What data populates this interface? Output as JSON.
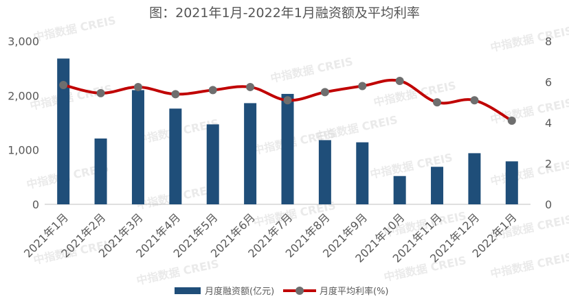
{
  "chart_data": {
    "type": "bar",
    "title": "图：2021年1月-2022年1月融资额及平均利率",
    "categories": [
      "2021年1月",
      "2021年2月",
      "2021年3月",
      "2021年4月",
      "2021年5月",
      "2021年6月",
      "2021年7月",
      "2021年8月",
      "2021年9月",
      "2021年10月",
      "2021年11月",
      "2021年12月",
      "2022年1月"
    ],
    "series": [
      {
        "name": "月度融资额(亿元)",
        "type": "bar",
        "axis": "left",
        "color": "#1f4e79",
        "values": [
          2680,
          1210,
          2100,
          1760,
          1470,
          1860,
          2030,
          1180,
          1140,
          520,
          690,
          940,
          790
        ]
      },
      {
        "name": "月度平均利率(%)",
        "type": "line",
        "axis": "right",
        "color": "#c00000",
        "marker_color": "#6e6e6e",
        "values": [
          5.85,
          5.45,
          5.75,
          5.4,
          5.6,
          5.75,
          5.1,
          5.5,
          5.8,
          6.05,
          5.0,
          5.1,
          4.1
        ]
      }
    ],
    "y_left": {
      "min": 0,
      "max": 3000,
      "ticks": [
        0,
        1000,
        2000,
        3000
      ],
      "tick_labels": [
        "0",
        "1,000",
        "2,000",
        "3,000"
      ]
    },
    "y_right": {
      "min": 0,
      "max": 8,
      "ticks": [
        0,
        2,
        4,
        6,
        8
      ],
      "tick_labels": [
        "0",
        "2",
        "4",
        "6",
        "8"
      ]
    },
    "grid": false,
    "legend_position": "bottom",
    "watermark": "中指数据 CREIS"
  }
}
